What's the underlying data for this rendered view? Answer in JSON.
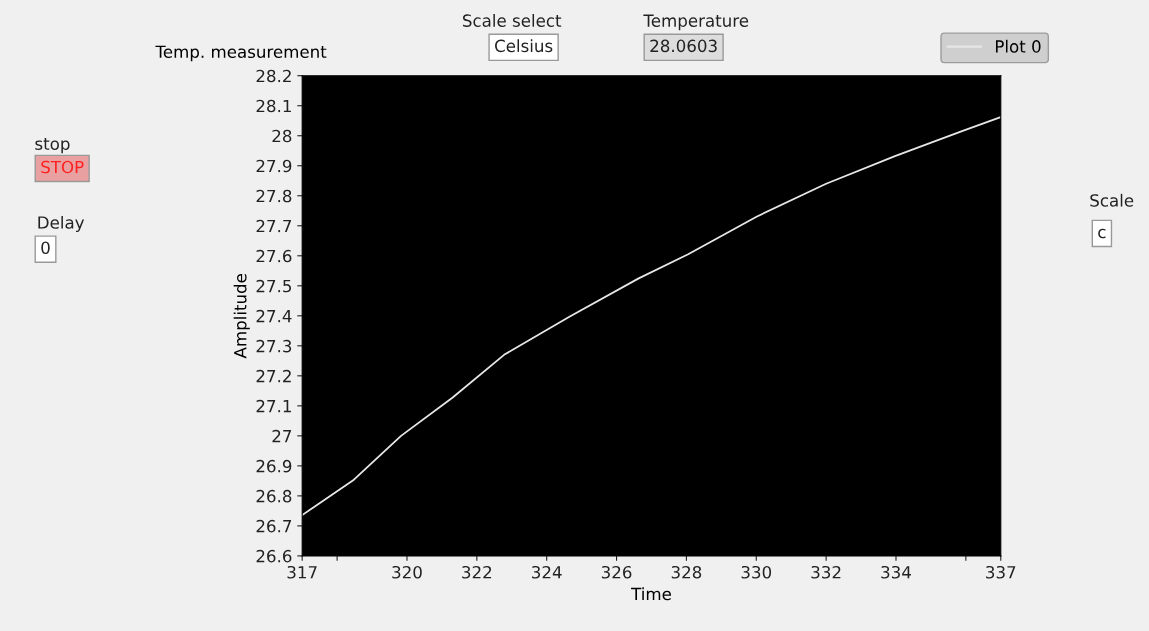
{
  "chart_data": {
    "type": "line",
    "title": "Temp. measurement",
    "xlabel": "Time",
    "ylabel": "Amplitude",
    "x": [
      317,
      318.45,
      319.83,
      321.3,
      322.78,
      324.65,
      326.62,
      328.05,
      330.02,
      332.0,
      333.97,
      335.16,
      335.95,
      337
    ],
    "series": [
      {
        "name": "Plot 0",
        "color": "#e6e6e6",
        "values": [
          26.736,
          26.851,
          27.0,
          27.127,
          27.27,
          27.397,
          27.524,
          27.605,
          27.731,
          27.84,
          27.932,
          27.984,
          28.018,
          28.062
        ]
      }
    ],
    "xlim": [
      317,
      337
    ],
    "ylim": [
      26.6,
      28.2
    ],
    "xticks": [
      317,
      {
        "value": 318,
        "label": null
      },
      320,
      322,
      324,
      326,
      328,
      330,
      332,
      334,
      {
        "value": 336,
        "label": null
      },
      337
    ],
    "yticks": [
      26.6,
      26.7,
      26.8,
      26.9,
      27,
      27.1,
      27.2,
      27.3,
      27.4,
      27.5,
      27.6,
      27.7,
      27.8,
      27.9,
      28,
      28.1,
      28.2
    ],
    "grid": false,
    "legend": "top right",
    "marker": "none",
    "line_style": "solid",
    "annotations": [
      "Scale select",
      "Celsius",
      "Temperature",
      "28.0603",
      "stop",
      "STOP",
      "Delay",
      "0",
      "Scale",
      "c"
    ]
  }
}
